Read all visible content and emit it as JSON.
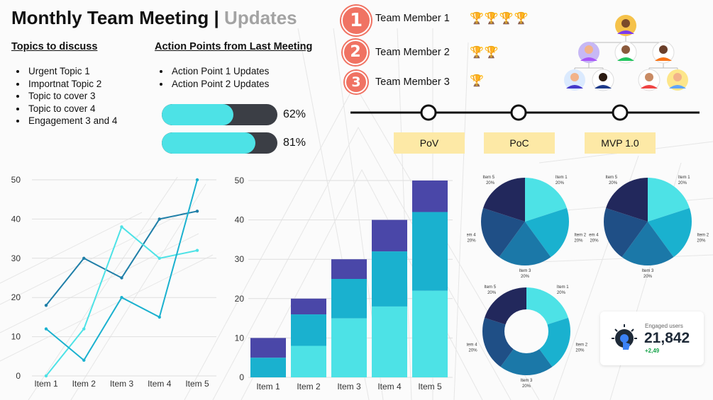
{
  "title": {
    "main": "Monthly Team Meeting |",
    "accent": "Updates"
  },
  "topics": {
    "heading": "Topics to discuss",
    "items": [
      "Urgent Topic 1",
      "Importnat Topic 2",
      "Topic to cover 3",
      "Topic to cover 4",
      "Engagement 3 and 4"
    ]
  },
  "actions": {
    "heading": "Action Points from Last Meeting",
    "items": [
      "Action Point 1 Updates",
      "Action Point 2 Updates"
    ]
  },
  "progress": [
    {
      "value": 0.62,
      "label": "62%"
    },
    {
      "value": 0.81,
      "label": "81%"
    }
  ],
  "members": [
    {
      "rank": "1",
      "name": "Team Member 1",
      "trophies": "🏆🏆🏆🏆"
    },
    {
      "rank": "2",
      "name": "Team Member 2",
      "trophies": "🏆🏆"
    },
    {
      "rank": "3",
      "name": "Team Member 3",
      "trophies": "🏆"
    }
  ],
  "stages": [
    "PoV",
    "PoC",
    "MVP 1.0"
  ],
  "engaged": {
    "label": "Engaged users",
    "value": "21,842",
    "delta": "+2,49",
    "icon": "touch-icon"
  },
  "colors": {
    "accent": "#f07363",
    "cyan": "#4de2e6",
    "dark": "#3b3e45",
    "badge_text": "#ffffff"
  },
  "chart_data": [
    {
      "type": "line",
      "categories": [
        "Item 1",
        "Item 2",
        "Item 3",
        "Item 4",
        "Item 5"
      ],
      "ylim": [
        0,
        50
      ],
      "yticks": [
        0,
        10,
        20,
        30,
        40,
        50
      ],
      "series": [
        {
          "color": "#1f7fa8",
          "values": [
            18,
            30,
            25,
            40,
            42
          ]
        },
        {
          "color": "#4de2e6",
          "values": [
            0,
            12,
            38,
            30,
            32
          ]
        },
        {
          "color": "#1ab1cf",
          "values": [
            12,
            4,
            20,
            15,
            50
          ]
        }
      ]
    },
    {
      "type": "bar",
      "stacked": true,
      "categories": [
        "Item 1",
        "Item 2",
        "Item 3",
        "Item 4",
        "Item 5"
      ],
      "ylim": [
        0,
        50
      ],
      "yticks": [
        0,
        10,
        20,
        30,
        40,
        50
      ],
      "series": [
        {
          "color": "#4de2e6",
          "values": [
            0,
            8,
            15,
            18,
            22
          ]
        },
        {
          "color": "#1ab1cf",
          "values": [
            5,
            8,
            10,
            14,
            20
          ]
        },
        {
          "color": "#4a47a8",
          "values": [
            5,
            4,
            5,
            8,
            8
          ]
        }
      ]
    },
    {
      "type": "pie",
      "slices": [
        {
          "label": "Item 1",
          "value_label": "20%",
          "value": 20,
          "color": "#4de2e6"
        },
        {
          "label": "Item 2",
          "value_label": "20%",
          "value": 20,
          "color": "#1ab1cf"
        },
        {
          "label": "Item 3",
          "value_label": "20%",
          "value": 20,
          "color": "#1b78a8"
        },
        {
          "label": "Item 4",
          "value_label": "20%",
          "value": 20,
          "color": "#1f4f86"
        },
        {
          "label": "Item 5",
          "value_label": "20%",
          "value": 20,
          "color": "#22285c"
        }
      ]
    },
    {
      "type": "pie",
      "slices": [
        {
          "label": "Item 1",
          "value_label": "20%",
          "value": 20,
          "color": "#4de2e6"
        },
        {
          "label": "Item 2",
          "value_label": "20%",
          "value": 20,
          "color": "#1ab1cf"
        },
        {
          "label": "Item 3",
          "value_label": "20%",
          "value": 20,
          "color": "#1b78a8"
        },
        {
          "label": "Item 4",
          "value_label": "20%",
          "value": 20,
          "color": "#1f4f86"
        },
        {
          "label": "Item 5",
          "value_label": "20%",
          "value": 20,
          "color": "#22285c"
        }
      ]
    },
    {
      "type": "pie",
      "donut": true,
      "slices": [
        {
          "label": "Item 1",
          "value_label": "20%",
          "value": 20,
          "color": "#4de2e6"
        },
        {
          "label": "Item 2",
          "value_label": "20%",
          "value": 20,
          "color": "#1ab1cf"
        },
        {
          "label": "Item 3",
          "value_label": "20%",
          "value": 20,
          "color": "#1b78a8"
        },
        {
          "label": "Item 4",
          "value_label": "20%",
          "value": 20,
          "color": "#1f4f86"
        },
        {
          "label": "Item 5",
          "value_label": "20%",
          "value": 20,
          "color": "#22285c"
        }
      ]
    }
  ]
}
